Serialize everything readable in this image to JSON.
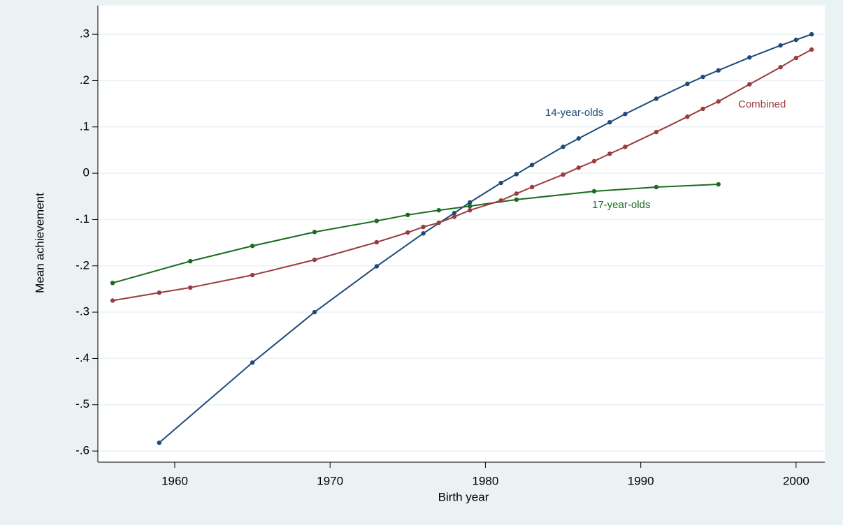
{
  "chart_data": {
    "type": "line",
    "x_label": "Birth year",
    "y_label": "Mean achievement",
    "xlim": [
      1955.05,
      2001.85
    ],
    "ylim": [
      -0.624,
      0.362
    ],
    "xticks": [
      1960,
      1970,
      1980,
      1990,
      2000
    ],
    "yticks": [
      {
        "value": 0.3,
        "label": ".3"
      },
      {
        "value": 0.2,
        "label": ".2"
      },
      {
        "value": 0.1,
        "label": ".1"
      },
      0,
      {
        "value": -0.1,
        "label": "-.1"
      },
      {
        "value": -0.2,
        "label": "-.2"
      },
      {
        "value": -0.3,
        "label": "-.3"
      },
      {
        "value": -0.4,
        "label": "-.4"
      },
      {
        "value": -0.5,
        "label": "-.5"
      },
      {
        "value": -0.6,
        "label": "-.6"
      }
    ],
    "grid": true,
    "series": [
      {
        "name": "14-year-olds",
        "color": "#1f4a78",
        "x": [
          1959,
          1965,
          1969,
          1973,
          1976,
          1978,
          1979,
          1981,
          1982,
          1983,
          1985,
          1986,
          1988,
          1989,
          1991,
          1993,
          1994,
          1995,
          1997,
          1999,
          2000,
          2001
        ],
        "values": [
          -0.582,
          -0.409,
          -0.3,
          -0.201,
          -0.13,
          -0.086,
          -0.063,
          -0.021,
          -0.002,
          0.018,
          0.057,
          0.075,
          0.11,
          0.128,
          0.161,
          0.193,
          0.208,
          0.222,
          0.25,
          0.276,
          0.288,
          0.3
        ]
      },
      {
        "name": "17-year-olds",
        "color": "#1a6b1f",
        "x": [
          1956,
          1961,
          1965,
          1969,
          1973,
          1975,
          1977,
          1979,
          1982,
          1987,
          1991,
          1995
        ],
        "values": [
          -0.237,
          -0.19,
          -0.157,
          -0.127,
          -0.103,
          -0.09,
          -0.08,
          -0.071,
          -0.057,
          -0.039,
          -0.03,
          -0.024
        ]
      },
      {
        "name": "Combined",
        "color": "#9b3b3d",
        "x": [
          1956,
          1959,
          1961,
          1965,
          1969,
          1973,
          1975,
          1976,
          1977,
          1978,
          1979,
          1981,
          1982,
          1983,
          1985,
          1986,
          1987,
          1988,
          1989,
          1991,
          1993,
          1994,
          1995,
          1997,
          1999,
          2000,
          2001
        ],
        "values": [
          -0.275,
          -0.258,
          -0.247,
          -0.22,
          -0.187,
          -0.149,
          -0.128,
          -0.116,
          -0.107,
          -0.094,
          -0.08,
          -0.059,
          -0.044,
          -0.03,
          -0.003,
          0.012,
          0.026,
          0.042,
          0.057,
          0.089,
          0.122,
          0.139,
          0.155,
          0.192,
          0.229,
          0.249,
          0.267
        ]
      }
    ]
  }
}
